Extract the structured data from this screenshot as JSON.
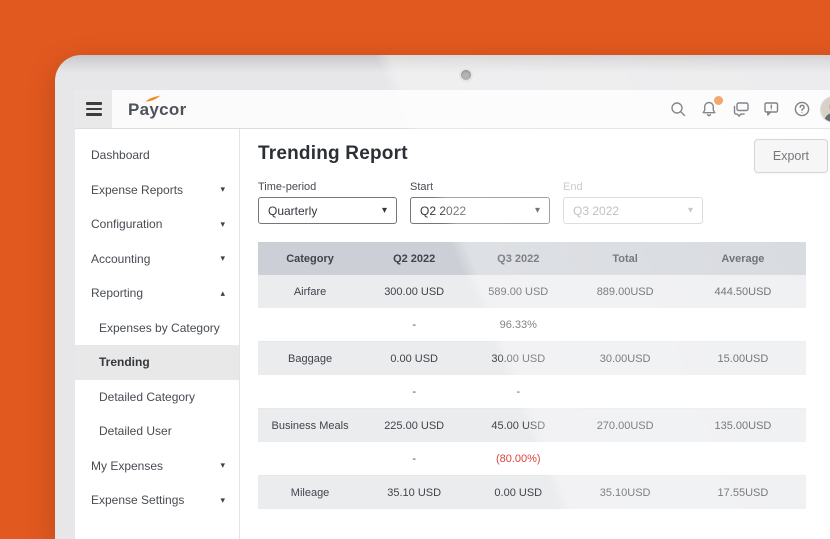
{
  "topbar": {
    "logo": "Paycor",
    "icons": [
      {
        "name": "search-icon"
      },
      {
        "name": "notifications-icon",
        "badge": true
      },
      {
        "name": "messages-icon"
      },
      {
        "name": "feedback-icon"
      },
      {
        "name": "help-icon"
      },
      {
        "name": "user-avatar"
      }
    ]
  },
  "sidebar": {
    "items": [
      {
        "label": "Dashboard",
        "sub": false,
        "chevron": null,
        "selected": false
      },
      {
        "label": "Expense Reports",
        "sub": false,
        "chevron": "down",
        "selected": false
      },
      {
        "label": "Configuration",
        "sub": false,
        "chevron": "down",
        "selected": false
      },
      {
        "label": "Accounting",
        "sub": false,
        "chevron": "down",
        "selected": false
      },
      {
        "label": "Reporting",
        "sub": false,
        "chevron": "up",
        "selected": false
      },
      {
        "label": "Expenses by Category",
        "sub": true,
        "chevron": null,
        "selected": false
      },
      {
        "label": "Trending",
        "sub": true,
        "chevron": null,
        "selected": true
      },
      {
        "label": "Detailed Category",
        "sub": true,
        "chevron": null,
        "selected": false
      },
      {
        "label": "Detailed User",
        "sub": true,
        "chevron": null,
        "selected": false
      },
      {
        "label": "My Expenses",
        "sub": false,
        "chevron": "down",
        "selected": false
      },
      {
        "label": "Expense Settings",
        "sub": false,
        "chevron": "down",
        "selected": false
      }
    ]
  },
  "main": {
    "title": "Trending Report",
    "export_label": "Export",
    "filters": [
      {
        "label": "Time-period",
        "value": "Quarterly",
        "disabled": false
      },
      {
        "label": "Start",
        "value": "Q2 2022",
        "disabled": false
      },
      {
        "label": "End",
        "value": "Q3 2022",
        "disabled": true
      }
    ]
  },
  "chart_data": {
    "type": "table",
    "title": "Trending Report",
    "columns": [
      "Category",
      "Q2 2022",
      "Q3 2022",
      "Total",
      "Average"
    ],
    "rows": [
      {
        "type": "data",
        "cells": [
          "Airfare",
          "300.00 USD",
          "589.00 USD",
          "889.00USD",
          "444.50USD"
        ]
      },
      {
        "type": "change",
        "cells": [
          "",
          "-",
          "96.33%",
          "",
          ""
        ],
        "red_cells": []
      },
      {
        "type": "data",
        "cells": [
          "Baggage",
          "0.00 USD",
          "30.00 USD",
          "30.00USD",
          "15.00USD"
        ]
      },
      {
        "type": "change",
        "cells": [
          "",
          "-",
          "-",
          "",
          ""
        ],
        "red_cells": []
      },
      {
        "type": "data",
        "cells": [
          "Business Meals",
          "225.00 USD",
          "45.00 USD",
          "270.00USD",
          "135.00USD"
        ]
      },
      {
        "type": "change",
        "cells": [
          "",
          "-",
          "(80.00%)",
          "",
          ""
        ],
        "red_cells": [
          2
        ]
      },
      {
        "type": "data",
        "cells": [
          "Mileage",
          "35.10 USD",
          "0.00 USD",
          "35.10USD",
          "17.55USD"
        ]
      },
      {
        "type": "change",
        "cells": [
          "",
          "",
          "",
          "",
          ""
        ],
        "red_cells": []
      }
    ]
  },
  "colors": {
    "backdrop_orange": "#e2591f",
    "brand_swoosh": "#f08c1e",
    "notification_badge": "#ef8b3f",
    "negative_value": "#d9453f",
    "table_header_bg": "#ccd0d6",
    "row_alt_bg": "#ebecee"
  }
}
